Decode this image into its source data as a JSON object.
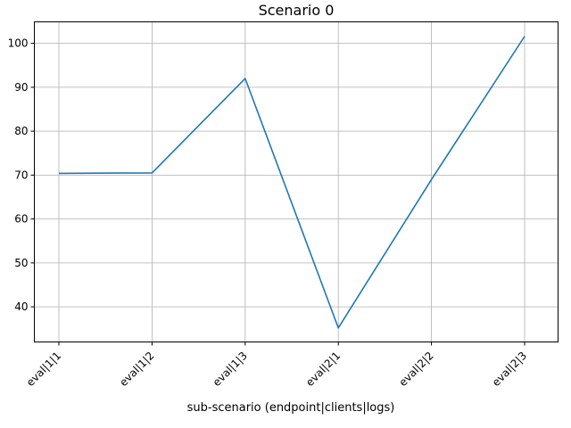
{
  "chart_data": {
    "type": "line",
    "title": "Scenario 0",
    "xlabel": "sub-scenario (endpoint|clients|logs)",
    "ylabel": "",
    "categories": [
      "eval|1|1",
      "eval|1|2",
      "eval|1|3",
      "eval|2|1",
      "eval|2|2",
      "eval|2|3"
    ],
    "series": [
      {
        "values": [
          70.4,
          70.5,
          92.0,
          35.2,
          69.0,
          101.6
        ]
      }
    ],
    "yticks": [
      40,
      50,
      60,
      70,
      80,
      90,
      100
    ],
    "ylim": [
      32.0,
      104.9
    ],
    "grid": true,
    "line_color": "#1f77b4"
  }
}
